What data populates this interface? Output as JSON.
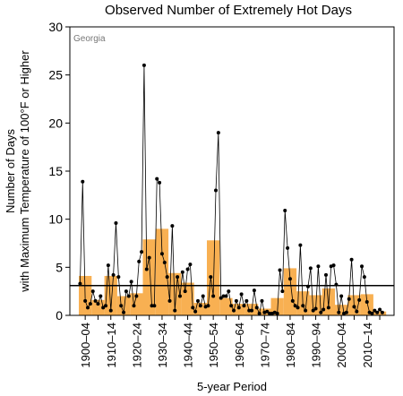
{
  "chart_data": {
    "type": "bar",
    "title": "Observed Number of Extremely Hot Days",
    "annotation": "Georgia",
    "y_label": [
      "Number of Days",
      "with Maximum Temperature of 100°F or Higher"
    ],
    "x_label": "5-year Period",
    "categories": [
      "1900–04",
      null,
      "1910–14",
      null,
      "1920–24",
      null,
      "1930–34",
      null,
      "1940–44",
      null,
      "1950–54",
      null,
      "1960–64",
      null,
      "1970–74",
      null,
      "1980–84",
      null,
      "1990–94",
      null,
      "2000–04",
      null,
      "2010–14",
      null
    ],
    "values": [
      4.1,
      1.6,
      4.1,
      2.0,
      2.3,
      7.9,
      9.0,
      4.4,
      3.4,
      1.3,
      7.8,
      1.8,
      1.2,
      1.2,
      0.7,
      1.8,
      4.9,
      2.5,
      2.1,
      2.8,
      1.1,
      2.1,
      2.2,
      0.4
    ],
    "color": "#f8b052",
    "line": {
      "type": "line",
      "color": "#000000",
      "x": [
        1900,
        1901,
        1902,
        1903,
        1904,
        1905,
        1906,
        1907,
        1908,
        1909,
        1910,
        1911,
        1912,
        1913,
        1914,
        1915,
        1916,
        1917,
        1918,
        1919,
        1920,
        1921,
        1922,
        1923,
        1924,
        1925,
        1926,
        1927,
        1928,
        1929,
        1930,
        1931,
        1932,
        1933,
        1934,
        1935,
        1936,
        1937,
        1938,
        1939,
        1940,
        1941,
        1942,
        1943,
        1944,
        1945,
        1946,
        1947,
        1948,
        1949,
        1950,
        1951,
        1952,
        1953,
        1954,
        1955,
        1956,
        1957,
        1958,
        1959,
        1960,
        1961,
        1962,
        1963,
        1964,
        1965,
        1966,
        1967,
        1968,
        1969,
        1970,
        1971,
        1972,
        1973,
        1974,
        1975,
        1976,
        1977,
        1978,
        1979,
        1980,
        1981,
        1982,
        1983,
        1984,
        1985,
        1986,
        1987,
        1988,
        1989,
        1990,
        1991,
        1992,
        1993,
        1994,
        1995,
        1996,
        1997,
        1998,
        1999,
        2000,
        2001,
        2002,
        2003,
        2004,
        2005,
        2006,
        2007,
        2008,
        2009,
        2010,
        2011,
        2012,
        2013,
        2014,
        2015,
        2016,
        2017,
        2018
      ],
      "values": [
        3.3,
        13.9,
        1.5,
        0.8,
        1.2,
        2.5,
        1.5,
        1.2,
        2.0,
        0.8,
        1.0,
        5.2,
        0.5,
        4.2,
        9.6,
        4.0,
        1.0,
        0.3,
        2.5,
        2.0,
        3.5,
        1.0,
        2.0,
        5.6,
        6.6,
        26.0,
        4.8,
        6.0,
        1.0,
        1.0,
        14.2,
        13.8,
        6.4,
        5.5,
        4.0,
        1.5,
        9.3,
        0.5,
        4.0,
        2.0,
        4.5,
        2.5,
        4.8,
        5.3,
        0.8,
        0.4,
        1.5,
        1.0,
        2.0,
        0.9,
        1.0,
        4.0,
        2.0,
        13.0,
        19.0,
        1.8,
        2.0,
        2.0,
        2.5,
        1.0,
        0.5,
        1.5,
        0.8,
        2.2,
        1.0,
        1.5,
        0.5,
        0.5,
        2.6,
        0.8,
        0.2,
        1.5,
        0.3,
        0.4,
        0.2,
        0.2,
        0.3,
        0.2,
        4.7,
        2.5,
        10.9,
        7.0,
        3.8,
        1.5,
        1.0,
        0.8,
        7.3,
        1.0,
        0.5,
        3.0,
        4.9,
        0.5,
        0.7,
        5.1,
        0.3,
        0.6,
        4.2,
        0.8,
        5.1,
        5.2,
        3.2,
        0.3,
        2.0,
        0.2,
        0.3,
        1.7,
        5.8,
        0.9,
        0.4,
        1.6,
        5.1,
        4.0,
        1.4,
        0.3,
        0.2,
        0.5,
        0.3,
        0.6,
        0.3
      ]
    },
    "reference_line": 3.1,
    "ylim": [
      0,
      30
    ],
    "yticks": [
      0,
      5,
      10,
      15,
      20,
      25,
      30
    ]
  }
}
